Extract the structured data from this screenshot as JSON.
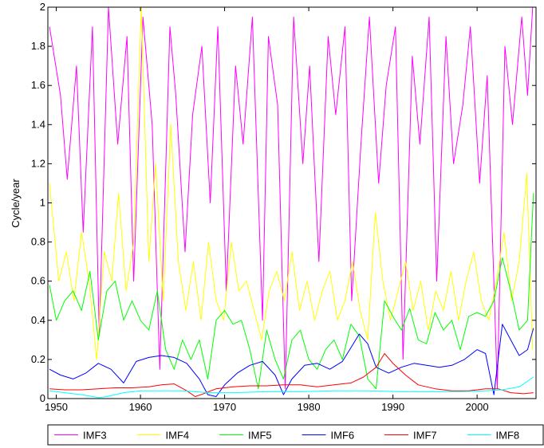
{
  "chart_data": {
    "type": "line",
    "title": "",
    "xlabel": "",
    "ylabel": "Cycle/year",
    "xlim": [
      1949,
      2007
    ],
    "ylim": [
      0,
      2
    ],
    "x_ticks": [
      1950,
      1960,
      1970,
      1980,
      1990,
      2000
    ],
    "x_tick_labels": [
      "1950",
      "1960",
      "1970",
      "1980",
      "1990",
      "2000"
    ],
    "y_ticks": [
      0,
      0.2,
      0.4,
      0.6,
      0.8,
      1,
      1.2,
      1.4,
      1.6,
      1.8,
      2
    ],
    "y_tick_labels": [
      "0",
      "0.2",
      "0.4",
      "0.6",
      "0.8",
      "1",
      "1.2",
      "1.4",
      "1.6",
      "1.8",
      "2"
    ],
    "grid": false,
    "legend_position": "bottom",
    "series": [
      {
        "name": "IMF3",
        "color": "#ff00ff",
        "x": [
          1949.2,
          1950.5,
          1951.3,
          1952.4,
          1953.2,
          1954.3,
          1955.1,
          1956.2,
          1957.3,
          1958.4,
          1959.2,
          1960.3,
          1961.4,
          1962.3,
          1963.5,
          1964.2,
          1965.3,
          1966.2,
          1967.3,
          1968.3,
          1969.2,
          1970.2,
          1971.3,
          1972.2,
          1973.3,
          1974.5,
          1975.2,
          1976.3,
          1977.2,
          1978.2,
          1979.3,
          1980.1,
          1981.2,
          1982.3,
          1983.2,
          1984.3,
          1985.1,
          1986.2,
          1987.2,
          1988.3,
          1989.2,
          1990.3,
          1991.2,
          1992.3,
          1993.2,
          1994.3,
          1995.2,
          1996.3,
          1997.2,
          1998.3,
          1999.2,
          2000.3,
          2001.2,
          2002.4,
          2003.3,
          2004.2,
          2005.3,
          2006.0,
          2006.6
        ],
        "y": [
          1.9,
          1.55,
          1.12,
          1.7,
          0.85,
          1.9,
          0.32,
          2.0,
          1.3,
          1.85,
          0.6,
          1.95,
          1.4,
          0.15,
          1.9,
          1.55,
          0.75,
          1.45,
          1.8,
          1.0,
          1.9,
          0.55,
          1.7,
          1.3,
          1.95,
          0.4,
          1.85,
          1.5,
          0.05,
          1.95,
          1.2,
          1.7,
          0.7,
          1.85,
          1.45,
          1.9,
          0.5,
          1.3,
          1.95,
          1.1,
          1.6,
          1.9,
          0.2,
          1.75,
          1.3,
          1.95,
          0.6,
          1.85,
          1.2,
          1.5,
          1.9,
          1.1,
          1.65,
          0.05,
          1.8,
          1.4,
          1.95,
          1.55,
          2.0
        ]
      },
      {
        "name": "IMF4",
        "color": "#ffff00",
        "x": [
          1949.2,
          1950.3,
          1951.2,
          1952.1,
          1953.0,
          1953.9,
          1954.8,
          1955.7,
          1956.6,
          1957.4,
          1958.3,
          1959.2,
          1960.1,
          1961.0,
          1961.8,
          1962.7,
          1963.6,
          1964.5,
          1965.4,
          1966.3,
          1967.2,
          1968.1,
          1969.0,
          1969.9,
          1970.8,
          1971.7,
          1972.6,
          1973.5,
          1974.4,
          1975.3,
          1976.2,
          1977.1,
          1978.0,
          1978.9,
          1979.8,
          1980.7,
          1981.6,
          1982.5,
          1983.4,
          1984.3,
          1985.2,
          1986.1,
          1987.0,
          1987.9,
          1988.8,
          1989.7,
          1990.6,
          1991.5,
          1992.4,
          1993.3,
          1994.2,
          1995.1,
          1996.0,
          1996.9,
          1997.8,
          1998.7,
          1999.6,
          2000.5,
          2001.4,
          2002.3,
          2003.2,
          2004.1,
          2005.0,
          2005.9,
          2006.6
        ],
        "y": [
          1.1,
          0.6,
          0.75,
          0.5,
          0.85,
          0.6,
          0.2,
          0.75,
          0.6,
          1.05,
          0.55,
          0.8,
          2.0,
          0.7,
          1.2,
          0.5,
          1.4,
          0.7,
          0.45,
          0.7,
          0.4,
          0.8,
          0.5,
          0.4,
          0.8,
          0.55,
          0.6,
          0.45,
          0.3,
          0.55,
          0.65,
          0.5,
          0.75,
          0.45,
          0.6,
          0.4,
          0.55,
          0.65,
          0.4,
          0.5,
          0.7,
          0.45,
          0.3,
          0.95,
          0.6,
          0.4,
          0.55,
          0.7,
          0.45,
          0.6,
          0.35,
          0.55,
          0.45,
          0.65,
          0.4,
          0.6,
          0.75,
          0.5,
          0.4,
          0.6,
          0.85,
          0.5,
          0.7,
          1.15,
          0.25
        ]
      },
      {
        "name": "IMF5",
        "color": "#00ff00",
        "x": [
          1949.2,
          1950.0,
          1951.0,
          1952.0,
          1953.0,
          1954.0,
          1955.0,
          1956.0,
          1957.0,
          1958.0,
          1959.0,
          1960.0,
          1961.0,
          1962.0,
          1963.0,
          1964.0,
          1965.0,
          1966.0,
          1967.0,
          1968.0,
          1969.0,
          1970.0,
          1971.0,
          1972.0,
          1973.0,
          1974.0,
          1975.0,
          1976.0,
          1977.0,
          1978.0,
          1979.0,
          1980.0,
          1981.0,
          1982.0,
          1983.0,
          1984.0,
          1985.0,
          1986.0,
          1987.0,
          1988.0,
          1989.0,
          1990.0,
          1991.0,
          1992.0,
          1993.0,
          1994.0,
          1995.0,
          1996.0,
          1997.0,
          1998.0,
          1999.0,
          2000.0,
          2001.0,
          2002.0,
          2003.0,
          2004.0,
          2005.0,
          2006.0,
          2006.7
        ],
        "y": [
          0.58,
          0.4,
          0.5,
          0.55,
          0.45,
          0.65,
          0.3,
          0.55,
          0.6,
          0.4,
          0.5,
          0.4,
          0.35,
          0.55,
          0.25,
          0.15,
          0.3,
          0.2,
          0.3,
          0.1,
          0.4,
          0.45,
          0.38,
          0.4,
          0.25,
          0.05,
          0.35,
          0.2,
          0.1,
          0.3,
          0.35,
          0.2,
          0.15,
          0.25,
          0.3,
          0.2,
          0.38,
          0.32,
          0.1,
          0.05,
          0.5,
          0.42,
          0.35,
          0.46,
          0.3,
          0.28,
          0.44,
          0.35,
          0.4,
          0.25,
          0.42,
          0.44,
          0.42,
          0.5,
          0.72,
          0.55,
          0.35,
          0.4,
          1.05
        ]
      },
      {
        "name": "IMF6",
        "color": "#0000ff",
        "x": [
          1949.2,
          1950.5,
          1952.0,
          1953.5,
          1955.0,
          1956.5,
          1958.0,
          1959.5,
          1961.0,
          1962.5,
          1964.0,
          1965.5,
          1967.0,
          1968.0,
          1969.0,
          1970.0,
          1971.5,
          1973.0,
          1974.5,
          1976.0,
          1977.0,
          1978.0,
          1979.5,
          1981.0,
          1982.5,
          1984.0,
          1985.0,
          1986.0,
          1987.0,
          1988.0,
          1989.5,
          1991.0,
          1992.5,
          1994.0,
          1995.5,
          1997.0,
          1998.5,
          2000.0,
          2001.0,
          2002.0,
          2003.0,
          2004.0,
          2005.0,
          2006.0,
          2006.7
        ],
        "y": [
          0.15,
          0.12,
          0.1,
          0.13,
          0.18,
          0.15,
          0.08,
          0.19,
          0.21,
          0.22,
          0.21,
          0.18,
          0.1,
          0.02,
          0.01,
          0.07,
          0.13,
          0.17,
          0.19,
          0.12,
          0.02,
          0.1,
          0.17,
          0.18,
          0.15,
          0.19,
          0.26,
          0.33,
          0.28,
          0.16,
          0.13,
          0.16,
          0.18,
          0.17,
          0.16,
          0.17,
          0.2,
          0.25,
          0.23,
          0.02,
          0.38,
          0.3,
          0.22,
          0.25,
          0.36
        ]
      },
      {
        "name": "IMF7",
        "color": "#ff0000",
        "x": [
          1949.2,
          1951.0,
          1953.0,
          1955.0,
          1957.0,
          1959.0,
          1961.0,
          1962.5,
          1964.0,
          1965.5,
          1966.5,
          1967.5,
          1969.0,
          1971.0,
          1973.0,
          1975.0,
          1977.0,
          1979.0,
          1981.0,
          1983.0,
          1985.0,
          1986.5,
          1988.0,
          1989.0,
          1990.0,
          1991.5,
          1993.0,
          1995.0,
          1997.0,
          1999.0,
          2001.0,
          2002.5,
          2004.0,
          2005.5,
          2006.7
        ],
        "y": [
          0.05,
          0.045,
          0.045,
          0.05,
          0.055,
          0.055,
          0.06,
          0.07,
          0.075,
          0.04,
          0.01,
          0.025,
          0.05,
          0.06,
          0.065,
          0.065,
          0.07,
          0.07,
          0.06,
          0.07,
          0.08,
          0.11,
          0.16,
          0.23,
          0.18,
          0.12,
          0.07,
          0.05,
          0.04,
          0.04,
          0.05,
          0.05,
          0.03,
          0.025,
          0.03
        ]
      },
      {
        "name": "IMF8",
        "color": "#00ffff",
        "x": [
          1949.2,
          1951.0,
          1953.0,
          1955.0,
          1956.0,
          1958.0,
          1960.0,
          1962.0,
          1965.0,
          1968.0,
          1971.0,
          1975.0,
          1979.0,
          1983.0,
          1987.0,
          1991.0,
          1995.0,
          1998.0,
          2001.0,
          2003.0,
          2005.0,
          2006.7
        ],
        "y": [
          0.04,
          0.03,
          0.02,
          0.005,
          0.01,
          0.03,
          0.04,
          0.04,
          0.04,
          0.03,
          0.03,
          0.035,
          0.035,
          0.04,
          0.04,
          0.035,
          0.035,
          0.035,
          0.04,
          0.045,
          0.06,
          0.11
        ]
      }
    ]
  }
}
